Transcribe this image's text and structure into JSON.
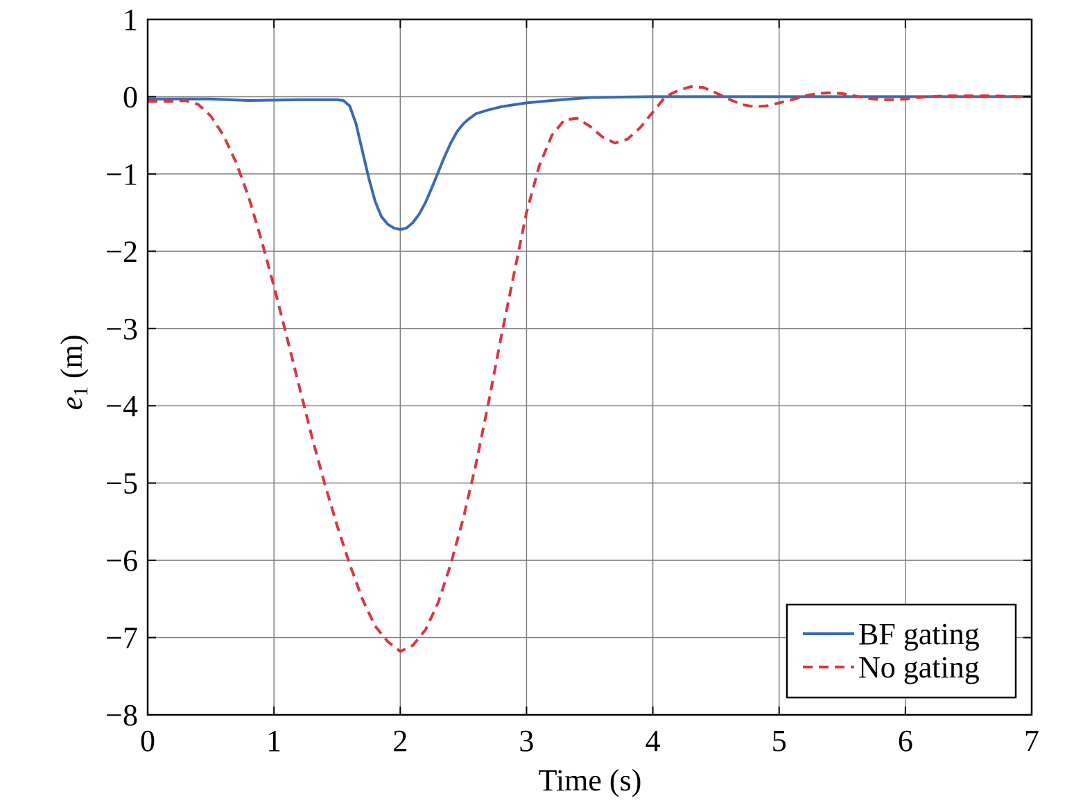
{
  "chart_data": {
    "type": "line",
    "xlabel": "Time (s)",
    "ylabel_main": "e",
    "ylabel_sub": "1",
    "ylabel_unit": " (m)",
    "xlim": [
      0,
      7
    ],
    "ylim": [
      -8,
      1
    ],
    "xticks": [
      0,
      1,
      2,
      3,
      4,
      5,
      6,
      7
    ],
    "yticks": [
      1,
      0,
      -1,
      -2,
      -3,
      -4,
      -5,
      -6,
      -7,
      -8
    ],
    "xtick_labels": [
      "0",
      "1",
      "2",
      "3",
      "4",
      "5",
      "6",
      "7"
    ],
    "ytick_labels": [
      "1",
      "0",
      "−1",
      "−2",
      "−3",
      "−4",
      "−5",
      "−6",
      "−7",
      "−8"
    ],
    "grid": true,
    "legend_position": "bottom-right",
    "series": [
      {
        "name": "BF gating",
        "color": "#3a6ab4",
        "style": "solid",
        "points": [
          [
            0,
            -0.03
          ],
          [
            0.5,
            -0.03
          ],
          [
            0.8,
            -0.05
          ],
          [
            1.2,
            -0.04
          ],
          [
            1.5,
            -0.04
          ],
          [
            1.55,
            -0.05
          ],
          [
            1.6,
            -0.12
          ],
          [
            1.65,
            -0.35
          ],
          [
            1.7,
            -0.7
          ],
          [
            1.75,
            -1.05
          ],
          [
            1.8,
            -1.35
          ],
          [
            1.85,
            -1.55
          ],
          [
            1.9,
            -1.65
          ],
          [
            1.95,
            -1.7
          ],
          [
            2.0,
            -1.72
          ],
          [
            2.05,
            -1.7
          ],
          [
            2.1,
            -1.63
          ],
          [
            2.15,
            -1.52
          ],
          [
            2.2,
            -1.37
          ],
          [
            2.25,
            -1.18
          ],
          [
            2.3,
            -0.98
          ],
          [
            2.35,
            -0.78
          ],
          [
            2.4,
            -0.6
          ],
          [
            2.45,
            -0.45
          ],
          [
            2.5,
            -0.35
          ],
          [
            2.55,
            -0.28
          ],
          [
            2.6,
            -0.22
          ],
          [
            2.7,
            -0.17
          ],
          [
            2.8,
            -0.13
          ],
          [
            3.0,
            -0.08
          ],
          [
            3.2,
            -0.05
          ],
          [
            3.5,
            -0.01
          ],
          [
            4.0,
            0.0
          ],
          [
            5.0,
            0.0
          ],
          [
            6.0,
            0.0
          ],
          [
            7.0,
            0.0
          ]
        ]
      },
      {
        "name": "No gating",
        "color": "#d9363e",
        "style": "dashed",
        "points": [
          [
            0,
            -0.06
          ],
          [
            0.2,
            -0.06
          ],
          [
            0.3,
            -0.05
          ],
          [
            0.4,
            -0.1
          ],
          [
            0.5,
            -0.25
          ],
          [
            0.6,
            -0.5
          ],
          [
            0.7,
            -0.85
          ],
          [
            0.8,
            -1.3
          ],
          [
            0.9,
            -1.85
          ],
          [
            1.0,
            -2.45
          ],
          [
            1.1,
            -3.1
          ],
          [
            1.2,
            -3.75
          ],
          [
            1.3,
            -4.4
          ],
          [
            1.4,
            -5.0
          ],
          [
            1.5,
            -5.55
          ],
          [
            1.6,
            -6.05
          ],
          [
            1.7,
            -6.5
          ],
          [
            1.8,
            -6.85
          ],
          [
            1.9,
            -7.05
          ],
          [
            2.0,
            -7.18
          ],
          [
            2.1,
            -7.1
          ],
          [
            2.2,
            -6.9
          ],
          [
            2.3,
            -6.55
          ],
          [
            2.4,
            -6.05
          ],
          [
            2.5,
            -5.45
          ],
          [
            2.6,
            -4.75
          ],
          [
            2.7,
            -3.95
          ],
          [
            2.8,
            -3.1
          ],
          [
            2.9,
            -2.3
          ],
          [
            3.0,
            -1.5
          ],
          [
            3.1,
            -0.9
          ],
          [
            3.2,
            -0.5
          ],
          [
            3.3,
            -0.3
          ],
          [
            3.4,
            -0.28
          ],
          [
            3.5,
            -0.38
          ],
          [
            3.6,
            -0.52
          ],
          [
            3.7,
            -0.6
          ],
          [
            3.8,
            -0.55
          ],
          [
            3.9,
            -0.4
          ],
          [
            4.0,
            -0.2
          ],
          [
            4.1,
            0.0
          ],
          [
            4.2,
            0.08
          ],
          [
            4.3,
            0.13
          ],
          [
            4.4,
            0.12
          ],
          [
            4.5,
            0.05
          ],
          [
            4.6,
            -0.03
          ],
          [
            4.7,
            -0.1
          ],
          [
            4.8,
            -0.13
          ],
          [
            4.9,
            -0.12
          ],
          [
            5.0,
            -0.08
          ],
          [
            5.1,
            -0.04
          ],
          [
            5.2,
            0.01
          ],
          [
            5.3,
            0.04
          ],
          [
            5.4,
            0.05
          ],
          [
            5.5,
            0.04
          ],
          [
            5.6,
            0.01
          ],
          [
            5.7,
            -0.02
          ],
          [
            5.8,
            -0.04
          ],
          [
            5.9,
            -0.04
          ],
          [
            6.0,
            -0.03
          ],
          [
            6.1,
            -0.01
          ],
          [
            6.3,
            0.01
          ],
          [
            6.5,
            0.01
          ],
          [
            6.7,
            0.01
          ],
          [
            6.9,
            0.0
          ],
          [
            7.0,
            0.0
          ]
        ]
      }
    ]
  }
}
